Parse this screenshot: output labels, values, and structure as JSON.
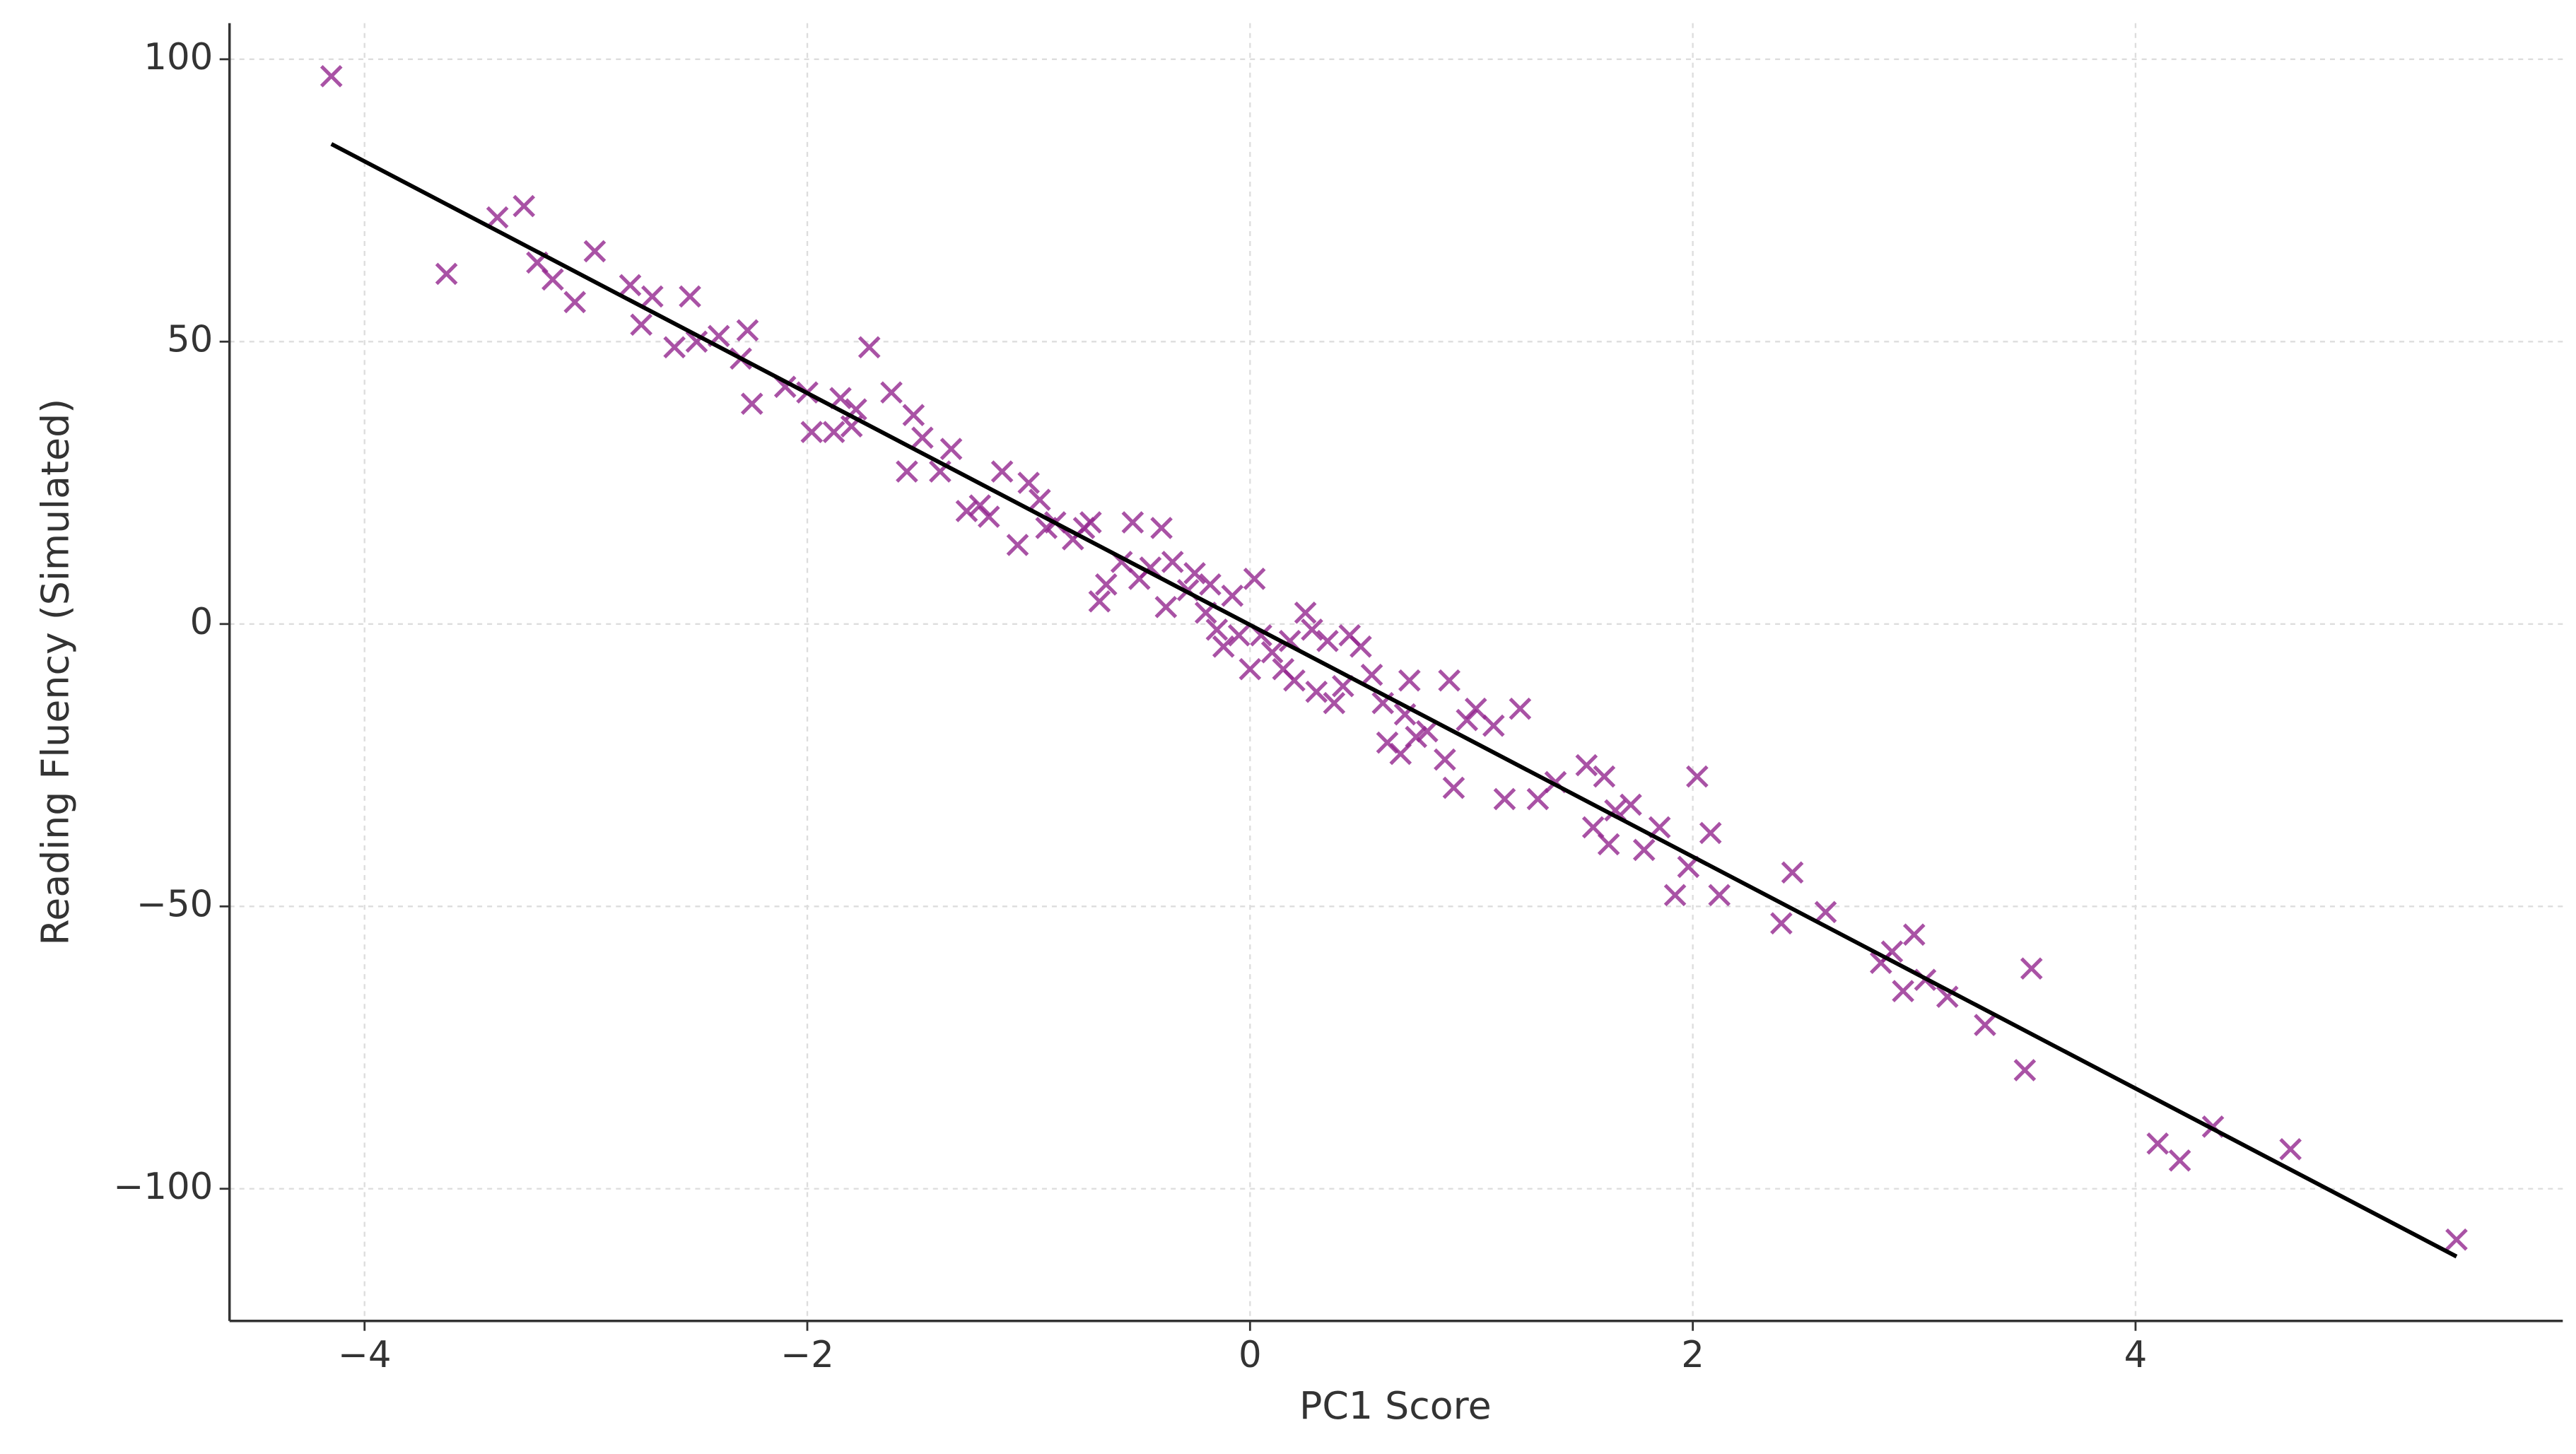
{
  "chart_data": {
    "type": "scatter",
    "x_label": "PC1 Score",
    "y_label": "Reading Fluency (Simulated)",
    "xlim": [
      -4.61,
      5.93
    ],
    "ylim": [
      -123.4,
      106.4
    ],
    "xticks": [
      {
        "value": -4,
        "label": "−4"
      },
      {
        "value": -2,
        "label": "−2"
      },
      0,
      2,
      4
    ],
    "yticks": [
      {
        "value": -100,
        "label": "−100"
      },
      {
        "value": -50,
        "label": "−50"
      },
      0,
      50,
      100
    ],
    "grid": true,
    "series": [
      {
        "color": "#93278f",
        "marker": "x",
        "x": [
          -4.15,
          -3.63,
          -3.4,
          -3.28,
          -3.22,
          -3.15,
          -3.05,
          -2.96,
          -2.8,
          -2.75,
          -2.7,
          -2.6,
          -2.53,
          -2.5,
          -2.4,
          -2.3,
          -2.27,
          -2.25,
          -2.1,
          -2.0,
          -1.98,
          -1.88,
          -1.85,
          -1.8,
          -1.78,
          -1.72,
          -1.62,
          -1.55,
          -1.52,
          -1.48,
          -1.4,
          -1.35,
          -1.28,
          -1.22,
          -1.18,
          -1.12,
          -1.05,
          -1.0,
          -0.95,
          -0.92,
          -0.88,
          -0.8,
          -0.75,
          -0.72,
          -0.68,
          -0.65,
          -0.58,
          -0.53,
          -0.5,
          -0.45,
          -0.4,
          -0.38,
          -0.35,
          -0.28,
          -0.25,
          -0.2,
          -0.18,
          -0.15,
          -0.12,
          -0.08,
          -0.05,
          0.0,
          0.02,
          0.05,
          0.1,
          0.15,
          0.18,
          0.2,
          0.25,
          0.28,
          0.3,
          0.35,
          0.38,
          0.42,
          0.45,
          0.5,
          0.55,
          0.6,
          0.62,
          0.68,
          0.7,
          0.72,
          0.75,
          0.8,
          0.88,
          0.9,
          0.92,
          0.98,
          1.02,
          1.1,
          1.15,
          1.22,
          1.3,
          1.38,
          1.52,
          1.55,
          1.6,
          1.62,
          1.65,
          1.72,
          1.78,
          1.85,
          1.92,
          1.98,
          2.02,
          2.08,
          2.12,
          2.4,
          2.45,
          2.6,
          2.85,
          2.9,
          2.95,
          3.0,
          3.05,
          3.15,
          3.32,
          3.5,
          3.53,
          4.1,
          4.2,
          4.35,
          4.7,
          5.45
        ],
        "values": [
          97,
          62,
          72,
          74,
          64,
          61,
          57,
          66,
          60,
          53,
          58,
          49,
          58,
          50,
          51,
          47,
          52,
          39,
          42,
          41,
          34,
          34,
          40,
          35,
          38,
          49,
          41,
          27,
          37,
          33,
          27,
          31,
          20,
          21,
          19,
          27,
          14,
          25,
          22,
          17,
          18,
          15,
          17,
          18,
          4,
          7,
          11,
          18,
          8,
          10,
          17,
          3,
          11,
          6,
          9,
          2,
          7,
          -1,
          -4,
          5,
          -2,
          -8,
          8,
          -2,
          -5,
          -8,
          -3,
          -10,
          2,
          -1,
          -12,
          -3,
          -14,
          -11,
          -2,
          -4,
          -9,
          -14,
          -21,
          -23,
          -16,
          -10,
          -20,
          -19,
          -24,
          -10,
          -29,
          -17,
          -15,
          -18,
          -31,
          -15,
          -31,
          -28,
          -25,
          -36,
          -27,
          -39,
          -33,
          -32,
          -40,
          -36,
          -48,
          -43,
          -27,
          -37,
          -48,
          -53,
          -44,
          -51,
          -60,
          -58,
          -65,
          -55,
          -63,
          -66,
          -71,
          -79,
          -61,
          -92,
          -95,
          -89,
          -93,
          -109
        ]
      }
    ],
    "fit_line": {
      "color": "#000000",
      "x": [
        -4.15,
        5.45
      ],
      "values": [
        85,
        -112
      ]
    }
  }
}
